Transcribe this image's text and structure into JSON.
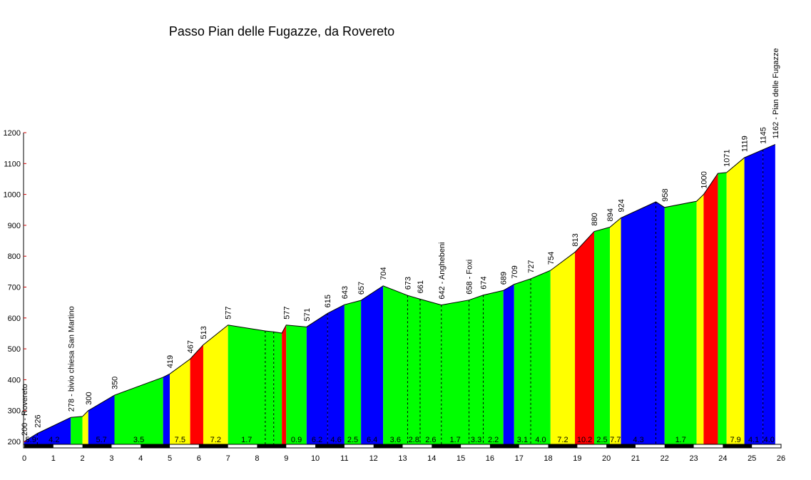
{
  "chart_data": {
    "type": "area",
    "title": "Passo Pian delle Fugazze, da Rovereto",
    "xlabel": "",
    "ylabel": "",
    "xlim": [
      0,
      26
    ],
    "ylim": [
      200,
      1200
    ],
    "x_ticks": [
      0,
      1,
      2,
      3,
      4,
      5,
      6,
      7,
      8,
      9,
      10,
      11,
      12,
      13,
      14,
      15,
      16,
      17,
      18,
      19,
      20,
      21,
      22,
      23,
      24,
      25,
      26
    ],
    "y_ticks": [
      200,
      300,
      400,
      500,
      600,
      700,
      800,
      900,
      1000,
      1100,
      1200
    ],
    "colors": {
      "blue": "#0000ff",
      "green": "#00ff00",
      "yellow": "#ffff00",
      "red": "#ff0000"
    },
    "points": [
      {
        "km": 0,
        "elev": 200,
        "label": "200 - Rovereto"
      },
      {
        "km": 0.45,
        "elev": 226,
        "label": "226"
      },
      {
        "km": 1.6,
        "elev": 278,
        "label": "278 - bivio chiesa San Martino"
      },
      {
        "km": 2.0,
        "elev": 281,
        "label": ""
      },
      {
        "km": 2.2,
        "elev": 300,
        "label": "300"
      },
      {
        "km": 3.1,
        "elev": 350,
        "label": "350"
      },
      {
        "km": 4.77,
        "elev": 408,
        "label": ""
      },
      {
        "km": 5.0,
        "elev": 419,
        "label": "419"
      },
      {
        "km": 5.7,
        "elev": 467,
        "label": "467"
      },
      {
        "km": 6.15,
        "elev": 513,
        "label": "513"
      },
      {
        "km": 7.0,
        "elev": 577,
        "label": "577"
      },
      {
        "km": 8.28,
        "elev": 558,
        "label": ""
      },
      {
        "km": 8.57,
        "elev": 555,
        "label": ""
      },
      {
        "km": 8.85,
        "elev": 551,
        "label": ""
      },
      {
        "km": 9.0,
        "elev": 577,
        "label": "577"
      },
      {
        "km": 9.7,
        "elev": 571,
        "label": "571"
      },
      {
        "km": 10.42,
        "elev": 615,
        "label": "615"
      },
      {
        "km": 11.0,
        "elev": 643,
        "label": "643"
      },
      {
        "km": 11.57,
        "elev": 657,
        "label": "657"
      },
      {
        "km": 12.33,
        "elev": 704,
        "label": "704"
      },
      {
        "km": 13.17,
        "elev": 673,
        "label": "673"
      },
      {
        "km": 13.6,
        "elev": 661,
        "label": "661"
      },
      {
        "km": 14.33,
        "elev": 642,
        "label": "642 - Anghebeni"
      },
      {
        "km": 15.28,
        "elev": 658,
        "label": "658 - Foxi"
      },
      {
        "km": 15.77,
        "elev": 674,
        "label": "674"
      },
      {
        "km": 16.46,
        "elev": 689,
        "label": "689"
      },
      {
        "km": 16.83,
        "elev": 709,
        "label": "709"
      },
      {
        "km": 17.4,
        "elev": 727,
        "label": "727"
      },
      {
        "km": 18.08,
        "elev": 754,
        "label": "754"
      },
      {
        "km": 18.92,
        "elev": 813,
        "label": "813"
      },
      {
        "km": 19.58,
        "elev": 880,
        "label": "880"
      },
      {
        "km": 20.12,
        "elev": 894,
        "label": "894"
      },
      {
        "km": 20.5,
        "elev": 924,
        "label": "924"
      },
      {
        "km": 21.7,
        "elev": 976,
        "label": ""
      },
      {
        "km": 22.0,
        "elev": 958,
        "label": "958"
      },
      {
        "km": 23.1,
        "elev": 978,
        "label": ""
      },
      {
        "km": 23.34,
        "elev": 1000,
        "label": "1000"
      },
      {
        "km": 23.83,
        "elev": 1068,
        "label": ""
      },
      {
        "km": 24.13,
        "elev": 1071,
        "label": "1071"
      },
      {
        "km": 24.74,
        "elev": 1119,
        "label": "1119"
      },
      {
        "km": 25.38,
        "elev": 1145,
        "label": "1145"
      },
      {
        "km": 25.8,
        "elev": 1162,
        "label": "1162 - Pian delle Fugazze"
      }
    ],
    "segments": [
      {
        "color": "blue",
        "grade": "5.9"
      },
      {
        "color": "blue",
        "grade": "4.2"
      },
      {
        "color": "green",
        "grade": ""
      },
      {
        "color": "yellow",
        "grade": ""
      },
      {
        "color": "blue",
        "grade": "5.7"
      },
      {
        "color": "green",
        "grade": "3.5"
      },
      {
        "color": "blue",
        "grade": ""
      },
      {
        "color": "yellow",
        "grade": "7.5"
      },
      {
        "color": "red",
        "grade": ""
      },
      {
        "color": "yellow",
        "grade": "7.2"
      },
      {
        "color": "green",
        "grade": "1.7"
      },
      {
        "color": "green",
        "grade": ""
      },
      {
        "color": "green",
        "grade": ""
      },
      {
        "color": "red",
        "grade": ""
      },
      {
        "color": "green",
        "grade": "0.9"
      },
      {
        "color": "blue",
        "grade": "6.2"
      },
      {
        "color": "blue",
        "grade": "4.6"
      },
      {
        "color": "green",
        "grade": "2.5"
      },
      {
        "color": "blue",
        "grade": "6.4"
      },
      {
        "color": "green",
        "grade": "3.6"
      },
      {
        "color": "green",
        "grade": "2.8"
      },
      {
        "color": "green",
        "grade": "2.6"
      },
      {
        "color": "green",
        "grade": "1.7"
      },
      {
        "color": "green",
        "grade": "3.3"
      },
      {
        "color": "green",
        "grade": "2.2"
      },
      {
        "color": "blue",
        "grade": ""
      },
      {
        "color": "green",
        "grade": "3.1"
      },
      {
        "color": "green",
        "grade": "4.0"
      },
      {
        "color": "yellow",
        "grade": "7.2"
      },
      {
        "color": "red",
        "grade": "10.2"
      },
      {
        "color": "green",
        "grade": "2.5"
      },
      {
        "color": "yellow",
        "grade": "7.7"
      },
      {
        "color": "blue",
        "grade": "4.3"
      },
      {
        "color": "blue",
        "grade": ""
      },
      {
        "color": "green",
        "grade": "1.7"
      },
      {
        "color": "yellow",
        "grade": ""
      },
      {
        "color": "red",
        "grade": ""
      },
      {
        "color": "green",
        "grade": ""
      },
      {
        "color": "yellow",
        "grade": "7.9"
      },
      {
        "color": "blue",
        "grade": "4.1"
      },
      {
        "color": "blue",
        "grade": "4.0"
      }
    ]
  }
}
